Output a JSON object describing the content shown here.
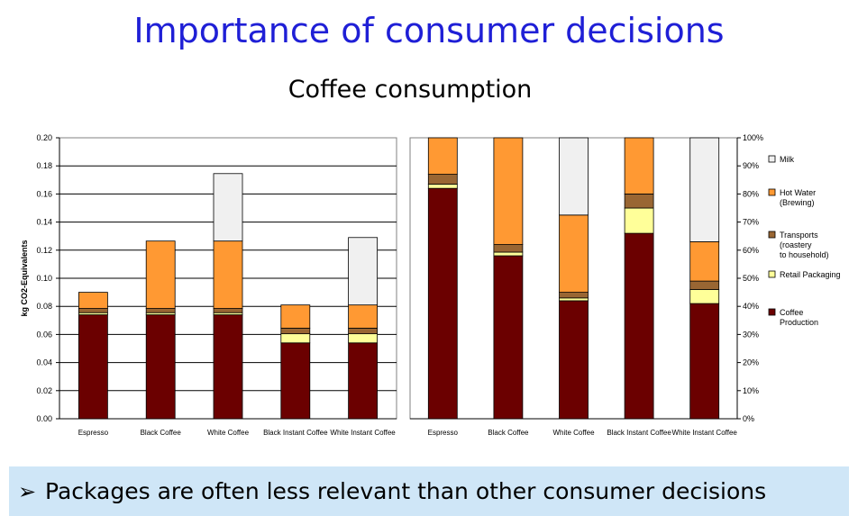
{
  "slide": {
    "title": "Importance of consumer decisions",
    "subtitle": "Coffee consumption",
    "bullet_marker": "➢",
    "bullet": "Packages are often less relevant than other consumer decisions",
    "bullet_band_color": "#cfe6f7",
    "title_color": "#1f1fd6"
  },
  "chart_data": [
    {
      "type": "bar",
      "stacked": true,
      "ylabel": "kg CO2-Equivalents",
      "ylim": [
        0,
        0.2
      ],
      "yticks": [
        "0.00",
        "0.02",
        "0.04",
        "0.06",
        "0.08",
        "0.10",
        "0.12",
        "0.14",
        "0.16",
        "0.18",
        "0.20"
      ],
      "grid": true,
      "categories": [
        "Espresso",
        "Black Coffee",
        "White Coffee",
        "Black Instant Coffee",
        "White Instant Coffee"
      ],
      "series": [
        {
          "name": "Coffee Production",
          "color": "#6b0000",
          "values": [
            0.074,
            0.074,
            0.074,
            0.054,
            0.054
          ]
        },
        {
          "name": "Retail Packaging",
          "color": "#ffff99",
          "values": [
            0.0015,
            0.0015,
            0.0015,
            0.0065,
            0.0065
          ]
        },
        {
          "name": "Transports (roastery to household)",
          "color": "#996633",
          "values": [
            0.003,
            0.003,
            0.003,
            0.004,
            0.004
          ]
        },
        {
          "name": "Hot Water (Brewing)",
          "color": "#ff9933",
          "values": [
            0.0115,
            0.048,
            0.048,
            0.0165,
            0.0165
          ]
        },
        {
          "name": "Milk",
          "color": "#f0f0f0",
          "values": [
            0,
            0,
            0.048,
            0,
            0.048
          ]
        }
      ]
    },
    {
      "type": "bar",
      "stacked": true,
      "percent": true,
      "ylim": [
        0,
        100
      ],
      "yticks": [
        "0%",
        "10%",
        "20%",
        "30%",
        "40%",
        "50%",
        "60%",
        "70%",
        "80%",
        "90%",
        "100%"
      ],
      "grid": false,
      "categories": [
        "Espresso",
        "Black Coffee",
        "White Coffee",
        "Black Instant Coffee",
        "White Instant Coffee"
      ],
      "series": [
        {
          "name": "Coffee Production",
          "color": "#6b0000",
          "values": [
            82,
            58,
            42,
            66,
            41
          ]
        },
        {
          "name": "Retail Packaging",
          "color": "#ffff99",
          "values": [
            1.5,
            1.3,
            1,
            9,
            5
          ]
        },
        {
          "name": "Transports (roastery to household)",
          "color": "#996633",
          "values": [
            3.5,
            2.7,
            2,
            5,
            3
          ]
        },
        {
          "name": "Hot Water (Brewing)",
          "color": "#ff9933",
          "values": [
            13,
            38,
            27.5,
            20,
            14
          ]
        },
        {
          "name": "Milk",
          "color": "#f0f0f0",
          "values": [
            0,
            0,
            27.5,
            0,
            37
          ]
        }
      ],
      "legend": {
        "placement": "right",
        "items": [
          {
            "lines": [
              "Milk"
            ],
            "color": "#f0f0f0"
          },
          {
            "lines": [
              "Hot Water",
              "(Brewing)"
            ],
            "color": "#ff9933"
          },
          {
            "lines": [
              "Transports",
              "(roastery",
              "to household)"
            ],
            "color": "#996633"
          },
          {
            "lines": [
              "Retail Packaging"
            ],
            "color": "#ffff99"
          },
          {
            "lines": [
              "Coffee",
              "Production"
            ],
            "color": "#6b0000"
          }
        ]
      }
    }
  ]
}
